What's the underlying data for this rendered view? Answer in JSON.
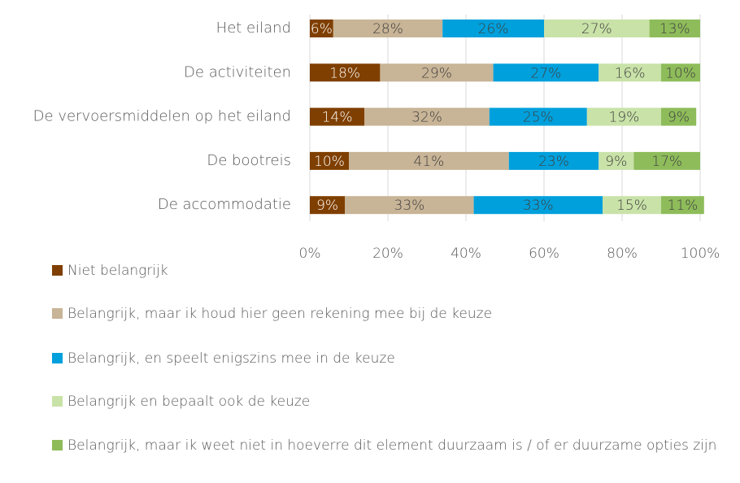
{
  "chart_data": {
    "type": "stacked-bar-horizontal",
    "categories": [
      "Het eiland",
      "De activiteiten",
      "De vervoersmiddelen op het eiland",
      "De bootreis",
      "De accommodatie"
    ],
    "series": [
      {
        "name": "Niet belangrijk",
        "color": "#7f3f00",
        "values": [
          6,
          18,
          14,
          10,
          9
        ],
        "value_labels": [
          "6%",
          "18%",
          "14%",
          "10%",
          "9%"
        ]
      },
      {
        "name": "Belangrijk, maar ik houd hier geen rekening mee bij de keuze",
        "color": "#c8b496",
        "values": [
          28,
          29,
          32,
          41,
          33
        ],
        "value_labels": [
          "28%",
          "29%",
          "32%",
          "41%",
          "33%"
        ]
      },
      {
        "name": "Belangrijk, en speelt enigszins mee in de keuze",
        "color": "#00a0dc",
        "values": [
          26,
          27,
          25,
          23,
          33
        ],
        "value_labels": [
          "26%",
          "27%",
          "25%",
          "23%",
          "33%"
        ]
      },
      {
        "name": "Belangrijk en bepaalt ook de keuze",
        "color": "#c9e2a8",
        "values": [
          27,
          16,
          19,
          9,
          15
        ],
        "value_labels": [
          "27%",
          "16%",
          "19%",
          "9%",
          "15%"
        ]
      },
      {
        "name": "Belangrijk, maar ik weet niet in hoeverre dit element duurzaam is / of er duurzame opties zijn",
        "color": "#8ebc5a",
        "values": [
          13,
          10,
          9,
          17,
          11
        ],
        "value_labels": [
          "13%",
          "10%",
          "9%",
          "17%",
          "11%"
        ]
      }
    ],
    "xlim": [
      0,
      100
    ],
    "xticks": [
      {
        "value": 0,
        "label": "0%"
      },
      {
        "value": 20,
        "label": "20%"
      },
      {
        "value": 40,
        "label": "40%"
      },
      {
        "value": 60,
        "label": "60%"
      },
      {
        "value": 80,
        "label": "80%"
      },
      {
        "value": 100,
        "label": "100%"
      }
    ],
    "grid": true,
    "legend": "bottom"
  }
}
